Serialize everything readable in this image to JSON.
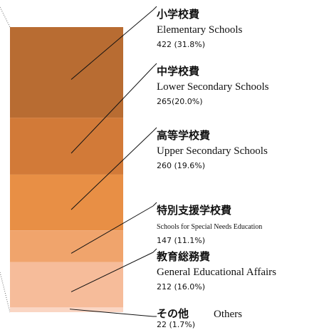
{
  "chart_data": {
    "type": "stacked-bar",
    "categories": [
      "小学校費",
      "中学校費",
      "高等学校費",
      "特別支援学校費",
      "教育総務費",
      "その他"
    ],
    "english_names": [
      "Elementary Schools",
      "Lower Secondary Schools",
      "Upper Secondary Schools",
      "Schools for Special Needs Education",
      "General Educational Affairs",
      "Others"
    ],
    "values": [
      422,
      265,
      260,
      147,
      212,
      22
    ],
    "value_labels": [
      "422 (31.8%)",
      "265(20.0%)",
      "260 (19.6%)",
      "147 (11.1%)",
      "212 (16.0%)",
      "22 (1.7%)"
    ],
    "colors": [
      "#b86c32",
      "#d27a38",
      "#e88f45",
      "#f0a46c",
      "#f6bc9a",
      "#fad6c4"
    ]
  }
}
